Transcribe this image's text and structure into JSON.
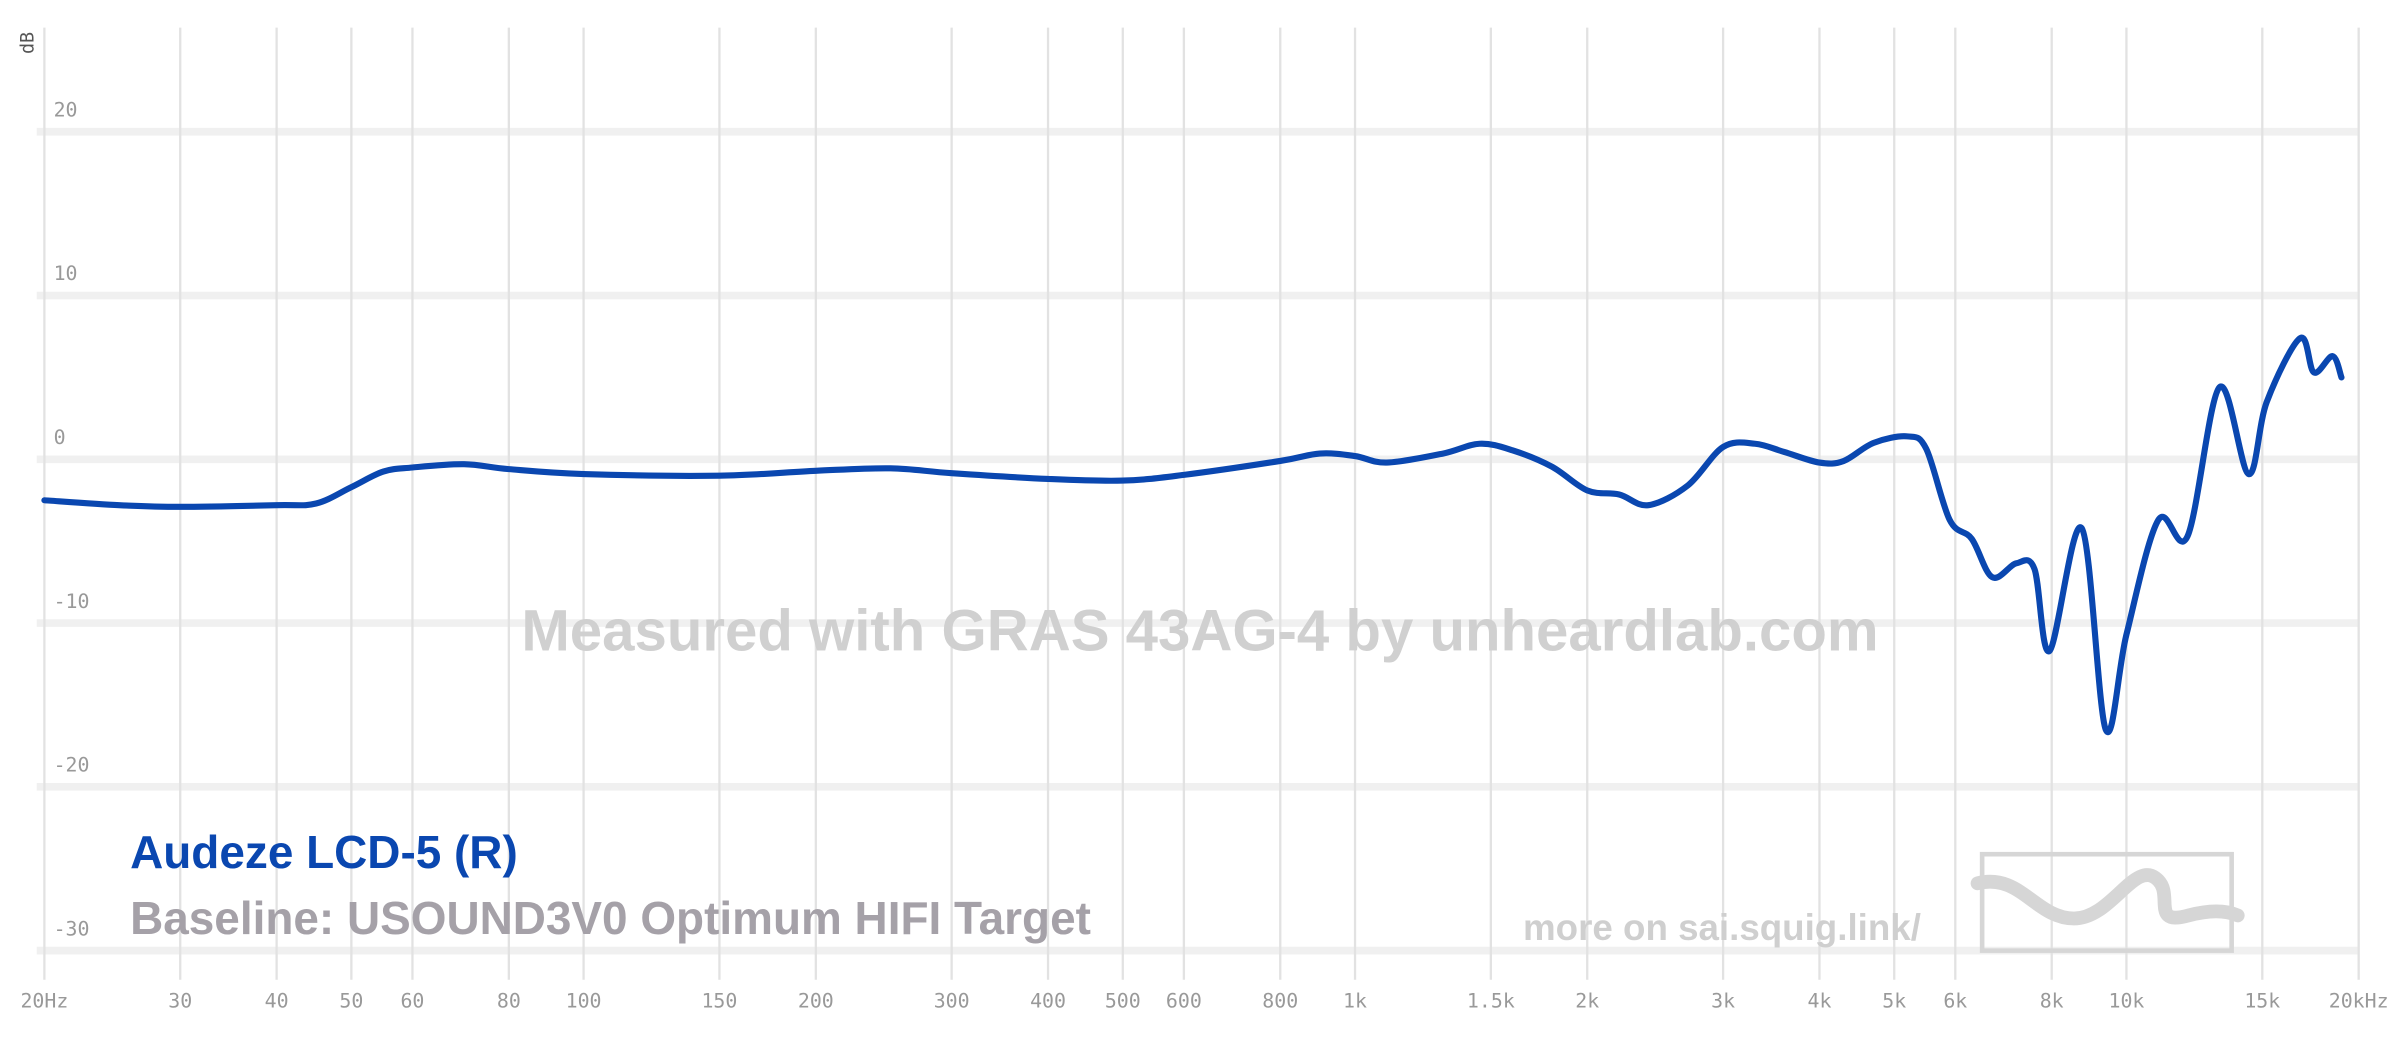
{
  "chart_data": {
    "type": "line",
    "ylabel": "dB",
    "watermark": "Measured with GRAS 43AG-4 by unheardlab.com",
    "baseline_label": "Baseline: USOUND3V0 Optimum HIFI Target",
    "footer_link": "more on sai.squig.link/",
    "xscale": "log",
    "grid": true,
    "xlim": [
      20,
      20000
    ],
    "ylim": [
      -31,
      26
    ],
    "yticks": [
      -30,
      -20,
      -10,
      0,
      10,
      20
    ],
    "xticks": [
      {
        "value": 20,
        "label": "20Hz"
      },
      30,
      40,
      50,
      60,
      80,
      100,
      150,
      200,
      300,
      400,
      500,
      600,
      800,
      {
        "value": 1000,
        "label": "1k"
      },
      {
        "value": 1500,
        "label": "1.5k"
      },
      {
        "value": 2000,
        "label": "2k"
      },
      {
        "value": 3000,
        "label": "3k"
      },
      {
        "value": 4000,
        "label": "4k"
      },
      {
        "value": 5000,
        "label": "5k"
      },
      {
        "value": 6000,
        "label": "6k"
      },
      {
        "value": 8000,
        "label": "8k"
      },
      {
        "value": 10000,
        "label": "10k"
      },
      {
        "value": 15000,
        "label": "15k"
      },
      {
        "value": 20000,
        "label": "20kHz"
      }
    ],
    "x": [
      20,
      25,
      30,
      40,
      45,
      50,
      55,
      60,
      70,
      80,
      100,
      150,
      200,
      250,
      300,
      400,
      500,
      600,
      800,
      900,
      1000,
      1100,
      1300,
      1450,
      1600,
      1800,
      2000,
      2200,
      2400,
      2700,
      3000,
      3300,
      3600,
      4000,
      4300,
      4700,
      5200,
      5500,
      5900,
      6300,
      6700,
      7200,
      7600,
      7950,
      8750,
      9400,
      10000,
      11000,
      12000,
      13200,
      14400,
      15200,
      16800,
      17500,
      18500,
      19000
    ],
    "series": [
      {
        "name": "Audeze LCD-5 (R)",
        "color": "#0a47b0",
        "values": [
          -2.5,
          -2.8,
          -2.9,
          -2.8,
          -2.7,
          -1.7,
          -0.75,
          -0.5,
          -0.3,
          -0.6,
          -0.9,
          -1.0,
          -0.7,
          -0.55,
          -0.85,
          -1.2,
          -1.3,
          -0.95,
          -0.1,
          0.35,
          0.2,
          -0.2,
          0.35,
          0.95,
          0.55,
          -0.45,
          -1.9,
          -2.15,
          -2.8,
          -1.6,
          0.75,
          0.95,
          0.45,
          -0.2,
          -0.1,
          1.0,
          1.4,
          0.65,
          -3.7,
          -4.85,
          -7.2,
          -6.35,
          -6.7,
          -11.7,
          -4.2,
          -16.5,
          -10.7,
          -3.7,
          -4.7,
          4.4,
          -0.9,
          3.5,
          7.4,
          5.3,
          6.3,
          5.0
        ]
      }
    ]
  }
}
